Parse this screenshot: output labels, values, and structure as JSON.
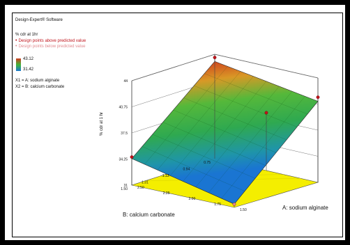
{
  "software": "Design-Expert® Software",
  "response_name": "% cdr at 1hr",
  "legend": {
    "above_label": "Design points above predicted value",
    "below_label": "Design points below predicted value",
    "above_color": "#c0141c",
    "below_color": "#e08a8f"
  },
  "colorbar": {
    "max_label": "43.12",
    "min_label": "31.42",
    "high_color": "#d03a1e",
    "mid_color": "#3fb536",
    "low_color": "#1a78d0"
  },
  "factors": {
    "x1": "X1 = A: sodium alginate",
    "x2": "X2 = B: calcium carbonate"
  },
  "chart_data": {
    "type": "surface",
    "zlabel": "% cdr at 1 hr",
    "xlabel": "A: sodium alginate",
    "ylabel": "B: calcium carbonate",
    "x_ticks": [
      "1.50",
      "1.75",
      "2.00",
      "2.25",
      "2.50"
    ],
    "y_ticks": [
      "0.75",
      "0.94",
      "1.13",
      "1.31",
      "1.50"
    ],
    "z_ticks": [
      "31",
      "34.25",
      "37.5",
      "40.75",
      "44"
    ],
    "xlim": [
      1.5,
      2.5
    ],
    "ylim": [
      0.75,
      1.5
    ],
    "zlim": [
      31,
      44
    ],
    "surface_corners": [
      {
        "a": 1.5,
        "b": 0.75,
        "z": 41.1
      },
      {
        "a": 2.5,
        "b": 0.75,
        "z": 43.12
      },
      {
        "a": 2.5,
        "b": 1.5,
        "z": 34.3
      },
      {
        "a": 1.5,
        "b": 1.5,
        "z": 31.42
      }
    ],
    "design_points": [
      {
        "a": 2.5,
        "b": 0.75,
        "z": 43.6,
        "position": "above"
      },
      {
        "a": 1.5,
        "b": 0.75,
        "z": 41.6,
        "position": "above"
      },
      {
        "a": 2.0,
        "b": 0.75,
        "z": 38.2,
        "position": "above"
      },
      {
        "a": 2.5,
        "b": 1.5,
        "z": 34.5,
        "position": "above"
      },
      {
        "a": 1.5,
        "b": 1.5,
        "z": 31.4,
        "position": "below"
      }
    ]
  }
}
